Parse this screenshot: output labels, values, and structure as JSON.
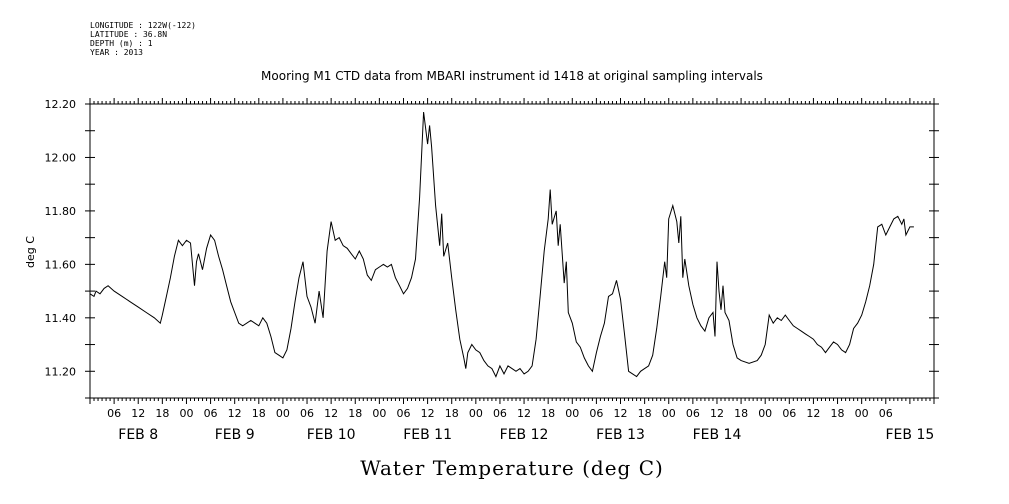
{
  "meta": {
    "longitude": "LONGITUDE : 122W(-122)",
    "latitude": "LATITUDE : 36.8N",
    "depth": "DEPTH (m) : 1",
    "year": "YEAR : 2013"
  },
  "chart_data": {
    "type": "line",
    "title": "Mooring M1 CTD data from MBARI instrument id 1418 at original sampling intervals",
    "xlabel": "",
    "ylabel": "deg C",
    "variable_label": "Water Temperature (deg C)",
    "ylim": [
      11.1,
      12.2
    ],
    "xlim_hours": [
      0,
      210
    ],
    "y_ticks": [
      "11.20",
      "11.40",
      "11.60",
      "11.80",
      "12.00",
      "12.20"
    ],
    "hour_tick_labels": [
      "06",
      "12",
      "18",
      "00",
      "06",
      "12",
      "18",
      "00",
      "06",
      "12",
      "18",
      "00",
      "06",
      "12",
      "18",
      "00",
      "06",
      "12",
      "18",
      "00",
      "06",
      "12",
      "18",
      "00",
      "06",
      "12",
      "18",
      "00",
      "06",
      "12",
      "18",
      "00",
      "06"
    ],
    "date_labels": [
      "FEB  8",
      "FEB  9",
      "FEB 10",
      "FEB 11",
      "FEB 12",
      "FEB 13",
      "FEB 14",
      "FEB 15"
    ],
    "grid": false,
    "series": [
      {
        "values": [
          [
            0,
            11.49
          ],
          [
            1,
            11.48
          ],
          [
            1.5,
            11.5
          ],
          [
            2.5,
            11.49
          ],
          [
            3.5,
            11.51
          ],
          [
            4.5,
            11.52
          ],
          [
            6,
            11.5
          ],
          [
            8,
            11.48
          ],
          [
            10,
            11.46
          ],
          [
            12,
            11.44
          ],
          [
            14,
            11.42
          ],
          [
            16,
            11.4
          ],
          [
            17.5,
            11.38
          ],
          [
            18,
            11.41
          ],
          [
            19,
            11.48
          ],
          [
            20,
            11.55
          ],
          [
            21,
            11.63
          ],
          [
            22,
            11.69
          ],
          [
            23,
            11.67
          ],
          [
            24,
            11.69
          ],
          [
            25,
            11.68
          ],
          [
            25.5,
            11.6
          ],
          [
            26,
            11.52
          ],
          [
            26.5,
            11.61
          ],
          [
            27,
            11.64
          ],
          [
            28,
            11.58
          ],
          [
            29,
            11.66
          ],
          [
            30,
            11.71
          ],
          [
            31,
            11.69
          ],
          [
            32,
            11.63
          ],
          [
            33,
            11.58
          ],
          [
            34,
            11.52
          ],
          [
            35,
            11.46
          ],
          [
            36,
            11.42
          ],
          [
            37,
            11.38
          ],
          [
            38,
            11.37
          ],
          [
            40,
            11.39
          ],
          [
            42,
            11.37
          ],
          [
            43,
            11.4
          ],
          [
            44,
            11.38
          ],
          [
            45,
            11.33
          ],
          [
            46,
            11.27
          ],
          [
            47,
            11.26
          ],
          [
            48,
            11.25
          ],
          [
            49,
            11.28
          ],
          [
            50,
            11.36
          ],
          [
            51,
            11.46
          ],
          [
            52,
            11.55
          ],
          [
            53,
            11.61
          ],
          [
            54,
            11.48
          ],
          [
            55,
            11.44
          ],
          [
            56,
            11.38
          ],
          [
            57,
            11.5
          ],
          [
            58,
            11.4
          ],
          [
            59,
            11.65
          ],
          [
            60,
            11.76
          ],
          [
            61,
            11.69
          ],
          [
            62,
            11.7
          ],
          [
            63,
            11.67
          ],
          [
            64,
            11.66
          ],
          [
            65,
            11.64
          ],
          [
            66,
            11.62
          ],
          [
            67,
            11.65
          ],
          [
            68,
            11.62
          ],
          [
            69,
            11.56
          ],
          [
            70,
            11.54
          ],
          [
            71,
            11.58
          ],
          [
            72,
            11.59
          ],
          [
            73,
            11.6
          ],
          [
            74,
            11.59
          ],
          [
            75,
            11.6
          ],
          [
            76,
            11.55
          ],
          [
            77,
            11.52
          ],
          [
            78,
            11.49
          ],
          [
            79,
            11.51
          ],
          [
            80,
            11.55
          ],
          [
            81,
            11.62
          ],
          [
            82,
            11.85
          ],
          [
            83,
            12.17
          ],
          [
            84,
            12.05
          ],
          [
            84.5,
            12.12
          ],
          [
            85,
            12.04
          ],
          [
            86,
            11.82
          ],
          [
            87,
            11.67
          ],
          [
            87.5,
            11.79
          ],
          [
            88,
            11.63
          ],
          [
            89,
            11.68
          ],
          [
            90,
            11.55
          ],
          [
            91,
            11.43
          ],
          [
            92,
            11.32
          ],
          [
            93,
            11.25
          ],
          [
            93.5,
            11.21
          ],
          [
            94,
            11.27
          ],
          [
            95,
            11.3
          ],
          [
            96,
            11.28
          ],
          [
            97,
            11.27
          ],
          [
            98,
            11.24
          ],
          [
            99,
            11.22
          ],
          [
            100,
            11.21
          ],
          [
            101,
            11.18
          ],
          [
            102,
            11.22
          ],
          [
            103,
            11.19
          ],
          [
            104,
            11.22
          ],
          [
            105,
            11.21
          ],
          [
            106,
            11.2
          ],
          [
            107,
            11.21
          ],
          [
            108,
            11.19
          ],
          [
            109,
            11.2
          ],
          [
            110,
            11.22
          ],
          [
            111,
            11.32
          ],
          [
            112,
            11.48
          ],
          [
            113,
            11.65
          ],
          [
            114,
            11.77
          ],
          [
            114.5,
            11.88
          ],
          [
            115,
            11.75
          ],
          [
            116,
            11.8
          ],
          [
            116.5,
            11.67
          ],
          [
            117,
            11.75
          ],
          [
            118,
            11.53
          ],
          [
            118.5,
            11.61
          ],
          [
            119,
            11.42
          ],
          [
            120,
            11.38
          ],
          [
            121,
            11.31
          ],
          [
            122,
            11.29
          ],
          [
            123,
            11.25
          ],
          [
            124,
            11.22
          ],
          [
            125,
            11.2
          ],
          [
            126,
            11.27
          ],
          [
            127,
            11.33
          ],
          [
            128,
            11.38
          ],
          [
            129,
            11.48
          ],
          [
            130,
            11.49
          ],
          [
            131,
            11.54
          ],
          [
            132,
            11.47
          ],
          [
            133,
            11.34
          ],
          [
            134,
            11.2
          ],
          [
            135,
            11.19
          ],
          [
            136,
            11.18
          ],
          [
            137,
            11.2
          ],
          [
            138,
            11.21
          ],
          [
            139,
            11.22
          ],
          [
            140,
            11.26
          ],
          [
            141,
            11.36
          ],
          [
            142,
            11.48
          ],
          [
            143,
            11.61
          ],
          [
            143.5,
            11.55
          ],
          [
            144,
            11.77
          ],
          [
            145,
            11.82
          ],
          [
            146,
            11.76
          ],
          [
            146.5,
            11.68
          ],
          [
            147,
            11.78
          ],
          [
            147.5,
            11.55
          ],
          [
            148,
            11.62
          ],
          [
            149,
            11.52
          ],
          [
            150,
            11.45
          ],
          [
            151,
            11.4
          ],
          [
            152,
            11.37
          ],
          [
            153,
            11.35
          ],
          [
            154,
            11.4
          ],
          [
            155,
            11.42
          ],
          [
            155.5,
            11.33
          ],
          [
            156,
            11.61
          ],
          [
            156.5,
            11.5
          ],
          [
            157,
            11.43
          ],
          [
            157.5,
            11.52
          ],
          [
            158,
            11.42
          ],
          [
            159,
            11.39
          ],
          [
            160,
            11.3
          ],
          [
            161,
            11.25
          ],
          [
            162,
            11.24
          ],
          [
            164,
            11.23
          ],
          [
            166,
            11.24
          ],
          [
            167,
            11.26
          ],
          [
            168,
            11.3
          ],
          [
            169,
            11.41
          ],
          [
            170,
            11.38
          ],
          [
            171,
            11.4
          ],
          [
            172,
            11.39
          ],
          [
            173,
            11.41
          ],
          [
            174,
            11.39
          ],
          [
            175,
            11.37
          ],
          [
            176,
            11.36
          ],
          [
            177,
            11.35
          ],
          [
            178,
            11.34
          ],
          [
            179,
            11.33
          ],
          [
            180,
            11.32
          ],
          [
            181,
            11.3
          ],
          [
            182,
            11.29
          ],
          [
            183,
            11.27
          ],
          [
            184,
            11.29
          ],
          [
            185,
            11.31
          ],
          [
            186,
            11.3
          ],
          [
            187,
            11.28
          ],
          [
            188,
            11.27
          ],
          [
            189,
            11.3
          ],
          [
            190,
            11.36
          ],
          [
            191,
            11.38
          ],
          [
            192,
            11.41
          ],
          [
            193,
            11.46
          ],
          [
            194,
            11.52
          ],
          [
            195,
            11.6
          ],
          [
            196,
            11.74
          ],
          [
            197,
            11.75
          ],
          [
            198,
            11.71
          ],
          [
            199,
            11.74
          ],
          [
            200,
            11.77
          ],
          [
            201,
            11.78
          ],
          [
            202,
            11.75
          ],
          [
            202.5,
            11.77
          ],
          [
            203,
            11.71
          ],
          [
            204,
            11.74
          ],
          [
            205,
            11.74
          ]
        ]
      }
    ]
  }
}
